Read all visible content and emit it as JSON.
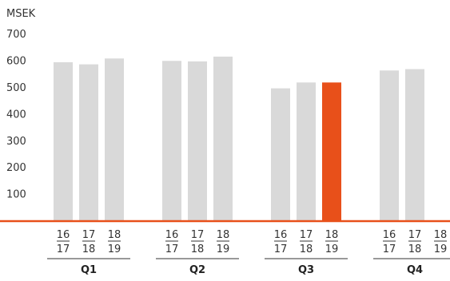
{
  "chart_data": {
    "type": "bar",
    "unit_label": "MSEK",
    "ylim": [
      0,
      700
    ],
    "yticks": [
      100,
      200,
      300,
      400,
      500,
      600,
      700
    ],
    "grid": false,
    "groups": [
      {
        "label": "Q1",
        "bars": [
          {
            "period_top": "16",
            "period_bottom": "17",
            "value": 593
          },
          {
            "period_top": "17",
            "period_bottom": "18",
            "value": 585
          },
          {
            "period_top": "18",
            "period_bottom": "19",
            "value": 607
          }
        ]
      },
      {
        "label": "Q2",
        "bars": [
          {
            "period_top": "16",
            "period_bottom": "17",
            "value": 598
          },
          {
            "period_top": "17",
            "period_bottom": "18",
            "value": 596
          },
          {
            "period_top": "18",
            "period_bottom": "19",
            "value": 614
          }
        ]
      },
      {
        "label": "Q3",
        "bars": [
          {
            "period_top": "16",
            "period_bottom": "17",
            "value": 495
          },
          {
            "period_top": "17",
            "period_bottom": "18",
            "value": 517
          },
          {
            "period_top": "18",
            "period_bottom": "19",
            "value": 517,
            "highlight": true
          }
        ]
      },
      {
        "label": "Q4",
        "bars": [
          {
            "period_top": "16",
            "period_bottom": "17",
            "value": 562
          },
          {
            "period_top": "17",
            "period_bottom": "18",
            "value": 567
          },
          {
            "period_top": "18",
            "period_bottom": "19",
            "value": null
          }
        ]
      }
    ],
    "colors": {
      "bar": "#d9d9d9",
      "highlight": "#e8501a",
      "baseline": "#e8501a",
      "text": "#333333",
      "rule": "#333333"
    }
  }
}
